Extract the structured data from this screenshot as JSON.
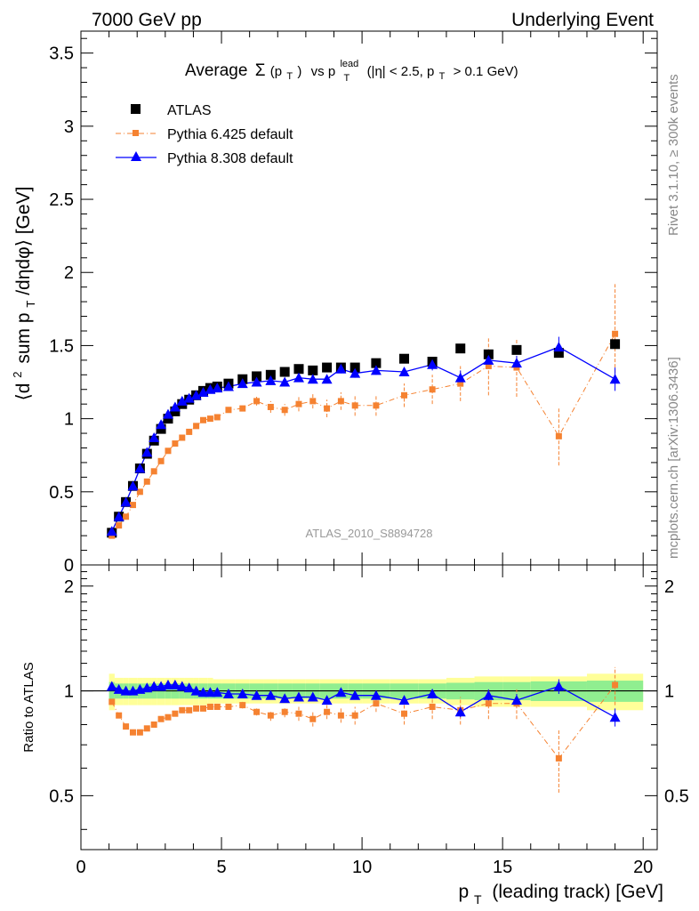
{
  "header": {
    "left": "7000 GeV pp",
    "right": "Underlying Event"
  },
  "side_labels": {
    "rivet": "Rivet 3.1.10, ≥ 300k events",
    "mcplots": "mcplots.cern.ch [arXiv:1306.3436]"
  },
  "chart_data": [
    {
      "type": "scatter",
      "panel": "main",
      "title_parts": {
        "average": "Average",
        "sigma": "Σ",
        "sigma_arg_open": "(p",
        "sub_T": "T",
        "sigma_arg_close": ")",
        "vs": "vs p",
        "sup_lead": "lead",
        "cut_open": "(|η| < 2.5, p",
        "cut_close": "> 0.1 GeV)"
      },
      "ylabel_parts": {
        "open": "⟨d",
        "sup2": "2",
        "mid": "sum p",
        "sub_T": "T",
        "close": "/dηdφ⟩ [GeV]"
      },
      "xlim": [
        0,
        20.5
      ],
      "ylim": [
        0,
        3.65
      ],
      "yticks": [
        0,
        0.5,
        1,
        1.5,
        2,
        2.5,
        3,
        3.5
      ],
      "ytick_labels": [
        "0",
        "0.5",
        "1",
        "1.5",
        "2",
        "2.5",
        "3",
        "3.5"
      ],
      "analysis_label": "ATLAS_2010_S8894728",
      "legend_position": "top-left",
      "series": [
        {
          "name": "ATLAS",
          "color": "#000000",
          "marker": "square",
          "x": [
            1.1,
            1.35,
            1.6,
            1.85,
            2.1,
            2.35,
            2.6,
            2.85,
            3.1,
            3.35,
            3.6,
            3.85,
            4.1,
            4.35,
            4.6,
            4.85,
            5.25,
            5.75,
            6.25,
            6.75,
            7.25,
            7.75,
            8.25,
            8.75,
            9.25,
            9.75,
            10.5,
            11.5,
            12.5,
            13.5,
            14.5,
            15.5,
            17.0,
            19.0
          ],
          "y": [
            0.22,
            0.33,
            0.43,
            0.54,
            0.66,
            0.76,
            0.85,
            0.93,
            1.0,
            1.05,
            1.1,
            1.13,
            1.16,
            1.19,
            1.21,
            1.22,
            1.24,
            1.27,
            1.29,
            1.3,
            1.32,
            1.34,
            1.33,
            1.35,
            1.35,
            1.35,
            1.38,
            1.41,
            1.39,
            1.48,
            1.44,
            1.47,
            1.45,
            1.51
          ],
          "yerr": [
            0.01,
            0.01,
            0.01,
            0.01,
            0.01,
            0.01,
            0.01,
            0.01,
            0.01,
            0.01,
            0.01,
            0.01,
            0.01,
            0.01,
            0.01,
            0.01,
            0.01,
            0.01,
            0.01,
            0.01,
            0.01,
            0.01,
            0.01,
            0.01,
            0.01,
            0.01,
            0.01,
            0.01,
            0.01,
            0.02,
            0.02,
            0.02,
            0.03,
            0.03
          ]
        },
        {
          "name": "Pythia 6.425 default",
          "color": "#f58231",
          "marker": "square-small",
          "line": "dash-dot",
          "x": [
            1.1,
            1.35,
            1.6,
            1.85,
            2.1,
            2.35,
            2.6,
            2.85,
            3.1,
            3.35,
            3.6,
            3.85,
            4.1,
            4.35,
            4.6,
            4.85,
            5.25,
            5.75,
            6.25,
            6.75,
            7.25,
            7.75,
            8.25,
            8.75,
            9.25,
            9.75,
            10.5,
            11.5,
            12.5,
            13.5,
            14.5,
            15.5,
            17.0,
            19.0
          ],
          "y": [
            0.2,
            0.27,
            0.33,
            0.41,
            0.5,
            0.57,
            0.64,
            0.71,
            0.78,
            0.83,
            0.87,
            0.91,
            0.95,
            0.99,
            1.0,
            1.01,
            1.06,
            1.07,
            1.12,
            1.08,
            1.06,
            1.1,
            1.12,
            1.07,
            1.12,
            1.09,
            1.09,
            1.16,
            1.2,
            1.24,
            1.36,
            1.35,
            0.88,
            1.58
          ],
          "yerr": [
            0.01,
            0.01,
            0.01,
            0.01,
            0.01,
            0.01,
            0.01,
            0.01,
            0.01,
            0.01,
            0.01,
            0.01,
            0.01,
            0.01,
            0.01,
            0.01,
            0.02,
            0.02,
            0.03,
            0.04,
            0.04,
            0.05,
            0.05,
            0.06,
            0.06,
            0.07,
            0.07,
            0.08,
            0.1,
            0.12,
            0.2,
            0.2,
            0.2,
            0.34
          ]
        },
        {
          "name": "Pythia 8.308 default",
          "color": "#0000ff",
          "marker": "triangle",
          "line": "solid",
          "x": [
            1.1,
            1.35,
            1.6,
            1.85,
            2.1,
            2.35,
            2.6,
            2.85,
            3.1,
            3.35,
            3.6,
            3.85,
            4.1,
            4.35,
            4.6,
            4.85,
            5.25,
            5.75,
            6.25,
            6.75,
            7.25,
            7.75,
            8.25,
            8.75,
            9.25,
            9.75,
            10.5,
            11.5,
            12.5,
            13.5,
            14.5,
            15.5,
            17.0,
            19.0
          ],
          "y": [
            0.23,
            0.33,
            0.43,
            0.54,
            0.66,
            0.77,
            0.87,
            0.96,
            1.03,
            1.08,
            1.12,
            1.14,
            1.16,
            1.18,
            1.2,
            1.21,
            1.22,
            1.24,
            1.25,
            1.26,
            1.25,
            1.28,
            1.27,
            1.27,
            1.34,
            1.31,
            1.33,
            1.32,
            1.37,
            1.28,
            1.4,
            1.38,
            1.49,
            1.27
          ],
          "yerr": [
            0.01,
            0.01,
            0.01,
            0.01,
            0.01,
            0.01,
            0.01,
            0.01,
            0.01,
            0.01,
            0.01,
            0.01,
            0.01,
            0.01,
            0.01,
            0.01,
            0.01,
            0.01,
            0.01,
            0.02,
            0.02,
            0.02,
            0.02,
            0.02,
            0.03,
            0.03,
            0.03,
            0.03,
            0.04,
            0.05,
            0.05,
            0.05,
            0.07,
            0.08
          ]
        }
      ]
    },
    {
      "type": "scatter",
      "panel": "ratio",
      "ylabel": "Ratio to ATLAS",
      "xlabel_parts": {
        "p": "p",
        "sub_T": "T",
        "rest": "(leading track) [GeV]"
      },
      "xlim": [
        0,
        20.5
      ],
      "ylim": [
        0.35,
        2.3
      ],
      "xticks": [
        0,
        5,
        10,
        15,
        20
      ],
      "xtick_labels": [
        "0",
        "5",
        "10",
        "15",
        "20"
      ],
      "yticks": [
        0.5,
        1,
        2
      ],
      "ytick_labels": [
        "0.5",
        "1",
        "2"
      ],
      "bands": {
        "x_edges": [
          1.0,
          1.2,
          1.5,
          1.7,
          2.0,
          2.2,
          2.5,
          2.7,
          3.0,
          3.2,
          3.5,
          3.7,
          4.0,
          4.2,
          4.5,
          4.7,
          5.0,
          5.5,
          6.0,
          6.5,
          7.0,
          7.5,
          8.0,
          8.5,
          9.0,
          9.5,
          10.0,
          11.0,
          12.0,
          13.0,
          14.0,
          15.0,
          16.0,
          18.0,
          20.0
        ],
        "green_halfwidth": [
          0.06,
          0.05,
          0.05,
          0.05,
          0.05,
          0.05,
          0.05,
          0.05,
          0.05,
          0.05,
          0.05,
          0.05,
          0.05,
          0.05,
          0.05,
          0.05,
          0.05,
          0.05,
          0.05,
          0.05,
          0.05,
          0.05,
          0.05,
          0.05,
          0.05,
          0.05,
          0.05,
          0.05,
          0.05,
          0.055,
          0.06,
          0.06,
          0.065,
          0.07
        ],
        "yellow_halfwidth": [
          0.12,
          0.09,
          0.09,
          0.09,
          0.09,
          0.09,
          0.09,
          0.09,
          0.09,
          0.09,
          0.09,
          0.09,
          0.09,
          0.09,
          0.09,
          0.08,
          0.08,
          0.08,
          0.08,
          0.08,
          0.08,
          0.08,
          0.08,
          0.08,
          0.08,
          0.08,
          0.08,
          0.08,
          0.08,
          0.09,
          0.1,
          0.1,
          0.1,
          0.12
        ],
        "green_color": "#90ee90",
        "yellow_color": "#ffff99"
      },
      "series": [
        {
          "name": "Pythia 6.425 default",
          "color": "#f58231",
          "x": [
            1.1,
            1.35,
            1.6,
            1.85,
            2.1,
            2.35,
            2.6,
            2.85,
            3.1,
            3.35,
            3.6,
            3.85,
            4.1,
            4.35,
            4.6,
            4.85,
            5.25,
            5.75,
            6.25,
            6.75,
            7.25,
            7.75,
            8.25,
            8.75,
            9.25,
            9.75,
            10.5,
            11.5,
            12.5,
            13.5,
            14.5,
            15.5,
            17.0,
            19.0
          ],
          "y": [
            0.93,
            0.85,
            0.79,
            0.76,
            0.76,
            0.78,
            0.8,
            0.83,
            0.84,
            0.86,
            0.88,
            0.88,
            0.89,
            0.89,
            0.9,
            0.9,
            0.9,
            0.91,
            0.87,
            0.85,
            0.87,
            0.86,
            0.83,
            0.87,
            0.85,
            0.85,
            0.92,
            0.86,
            0.9,
            0.88,
            0.92,
            0.92,
            0.64,
            1.04
          ],
          "yerr": [
            0.01,
            0.01,
            0.01,
            0.01,
            0.01,
            0.01,
            0.01,
            0.01,
            0.01,
            0.01,
            0.01,
            0.01,
            0.01,
            0.01,
            0.01,
            0.01,
            0.01,
            0.02,
            0.02,
            0.03,
            0.03,
            0.04,
            0.04,
            0.04,
            0.04,
            0.05,
            0.05,
            0.06,
            0.07,
            0.08,
            0.09,
            0.09,
            0.13,
            0.13
          ]
        },
        {
          "name": "Pythia 8.308 default",
          "color": "#0000ff",
          "x": [
            1.1,
            1.35,
            1.6,
            1.85,
            2.1,
            2.35,
            2.6,
            2.85,
            3.1,
            3.35,
            3.6,
            3.85,
            4.1,
            4.35,
            4.6,
            4.85,
            5.25,
            5.75,
            6.25,
            6.75,
            7.25,
            7.75,
            8.25,
            8.75,
            9.25,
            9.75,
            10.5,
            11.5,
            12.5,
            13.5,
            14.5,
            15.5,
            17.0,
            19.0
          ],
          "y": [
            1.03,
            1.01,
            1.0,
            1.0,
            1.01,
            1.02,
            1.03,
            1.03,
            1.04,
            1.04,
            1.03,
            1.02,
            1.0,
            0.99,
            0.99,
            0.99,
            0.98,
            0.98,
            0.97,
            0.97,
            0.95,
            0.96,
            0.96,
            0.94,
            0.99,
            0.97,
            0.97,
            0.94,
            0.98,
            0.87,
            0.97,
            0.94,
            1.03,
            0.84
          ],
          "yerr": [
            0.01,
            0.01,
            0.01,
            0.01,
            0.01,
            0.01,
            0.01,
            0.01,
            0.01,
            0.01,
            0.01,
            0.01,
            0.01,
            0.01,
            0.01,
            0.01,
            0.01,
            0.01,
            0.01,
            0.01,
            0.01,
            0.01,
            0.01,
            0.01,
            0.02,
            0.02,
            0.02,
            0.02,
            0.03,
            0.03,
            0.04,
            0.04,
            0.05,
            0.05
          ]
        }
      ]
    }
  ]
}
